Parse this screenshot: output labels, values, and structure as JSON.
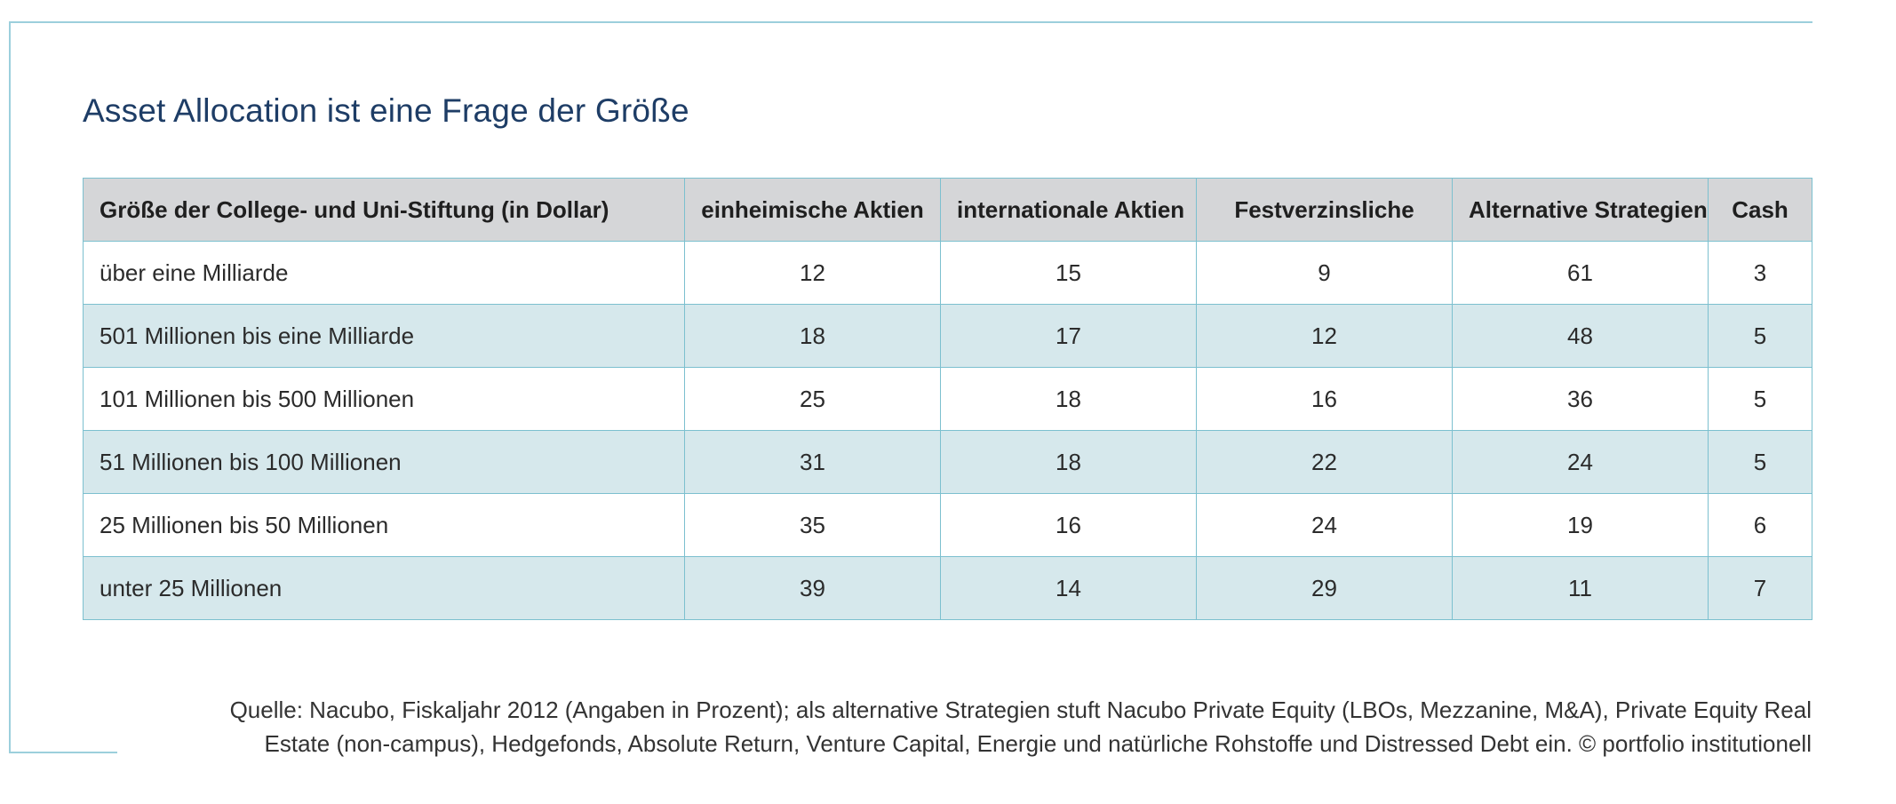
{
  "title": "Asset Allocation ist eine Frage der Größe",
  "chart_data": {
    "type": "table",
    "title": "Asset Allocation ist eine Frage der Größe",
    "columns": [
      "Größe der College- und Uni-Stiftung (in Dollar)",
      "einheimische Aktien",
      "internationale Aktien",
      "Festverzinsliche",
      "Alternative Strategien",
      "Cash"
    ],
    "rows": [
      {
        "label": "über eine Milliarde",
        "values": [
          12,
          15,
          9,
          61,
          3
        ]
      },
      {
        "label": "501 Millionen bis eine Milliarde",
        "values": [
          18,
          17,
          12,
          48,
          5
        ]
      },
      {
        "label": "101 Millionen bis 500 Millionen",
        "values": [
          25,
          18,
          16,
          36,
          5
        ]
      },
      {
        "label": "51 Millionen bis 100 Millionen",
        "values": [
          31,
          18,
          22,
          24,
          5
        ]
      },
      {
        "label": "25 Millionen bis 50 Millionen",
        "values": [
          35,
          16,
          24,
          19,
          6
        ]
      },
      {
        "label": "unter 25 Millionen",
        "values": [
          39,
          14,
          29,
          11,
          7
        ]
      }
    ]
  },
  "source": {
    "line1": "Quelle: Nacubo, Fiskaljahr 2012 (Angaben in Prozent); als alternative Strategien stuft Nacubo Private Equity (LBOs, Mezzanine, M&A), Private Equity Real",
    "line2": "Estate (non-campus), Hedgefonds, Absolute Return, Venture Capital, Energie und natürliche Rohstoffe und Distressed Debt ein. © portfolio institutionell"
  },
  "colors": {
    "title": "#1e3d66",
    "header_bg": "#d5d6d8",
    "row_alt_bg": "#d6e8ec",
    "grid": "#7cc0cf",
    "frame": "#9ccfdc"
  }
}
